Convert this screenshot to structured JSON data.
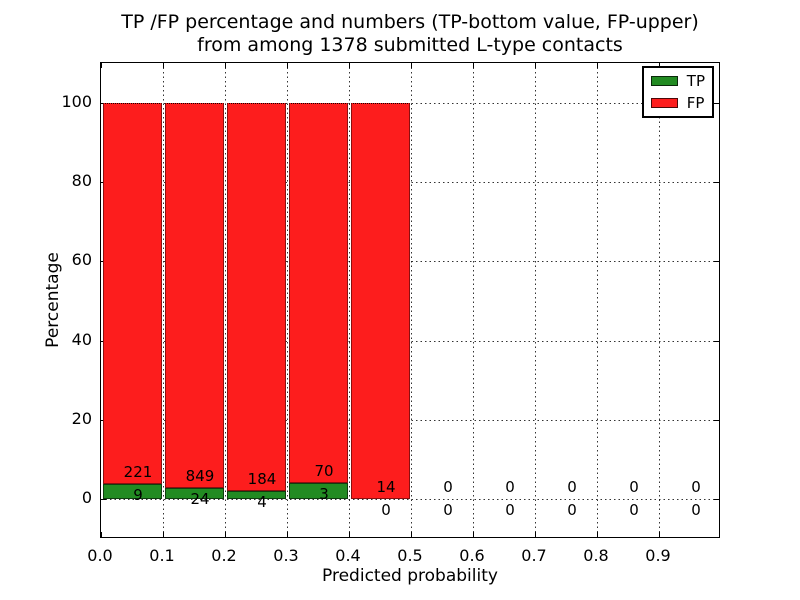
{
  "chart_data": {
    "type": "bar",
    "stacked": true,
    "title_line1": "TP /FP percentage and numbers (TP-bottom value, FP-upper)",
    "title_line2": "from among 1378 submitted L-type contacts",
    "xlabel": "Predicted probability",
    "ylabel": "Percentage",
    "total_submitted_contacts": 1378,
    "xlim": [
      0.0,
      1.0
    ],
    "ylim": [
      -10,
      110
    ],
    "x_tick_labels": [
      "0.0",
      "0.1",
      "0.2",
      "0.3",
      "0.4",
      "0.5",
      "0.6",
      "0.7",
      "0.8",
      "0.9"
    ],
    "y_tick_values": [
      0,
      20,
      40,
      60,
      80,
      100
    ],
    "grid": "dotted",
    "legend_position": "upper right",
    "legend": [
      {
        "label": "TP",
        "color": "#228b22"
      },
      {
        "label": "FP",
        "color": "#fd1d1d"
      }
    ],
    "bins": [
      {
        "x_start": 0.0,
        "x_end": 0.1,
        "tp_count": 9,
        "fp_count": 221,
        "tp_pct": 3.91,
        "fp_pct": 96.09
      },
      {
        "x_start": 0.1,
        "x_end": 0.2,
        "tp_count": 24,
        "fp_count": 849,
        "tp_pct": 2.75,
        "fp_pct": 97.25
      },
      {
        "x_start": 0.2,
        "x_end": 0.3,
        "tp_count": 4,
        "fp_count": 184,
        "tp_pct": 2.13,
        "fp_pct": 97.87
      },
      {
        "x_start": 0.3,
        "x_end": 0.4,
        "tp_count": 3,
        "fp_count": 70,
        "tp_pct": 4.11,
        "fp_pct": 95.89
      },
      {
        "x_start": 0.4,
        "x_end": 0.5,
        "tp_count": 0,
        "fp_count": 14,
        "tp_pct": 0,
        "fp_pct": 100
      },
      {
        "x_start": 0.5,
        "x_end": 0.6,
        "tp_count": 0,
        "fp_count": 0,
        "tp_pct": 0,
        "fp_pct": 0
      },
      {
        "x_start": 0.6,
        "x_end": 0.7,
        "tp_count": 0,
        "fp_count": 0,
        "tp_pct": 0,
        "fp_pct": 0
      },
      {
        "x_start": 0.7,
        "x_end": 0.8,
        "tp_count": 0,
        "fp_count": 0,
        "tp_pct": 0,
        "fp_pct": 0
      },
      {
        "x_start": 0.8,
        "x_end": 0.9,
        "tp_count": 0,
        "fp_count": 0,
        "tp_pct": 0,
        "fp_pct": 0
      },
      {
        "x_start": 0.9,
        "x_end": 1.0,
        "tp_count": 0,
        "fp_count": 0,
        "tp_pct": 0,
        "fp_pct": 0
      }
    ]
  }
}
